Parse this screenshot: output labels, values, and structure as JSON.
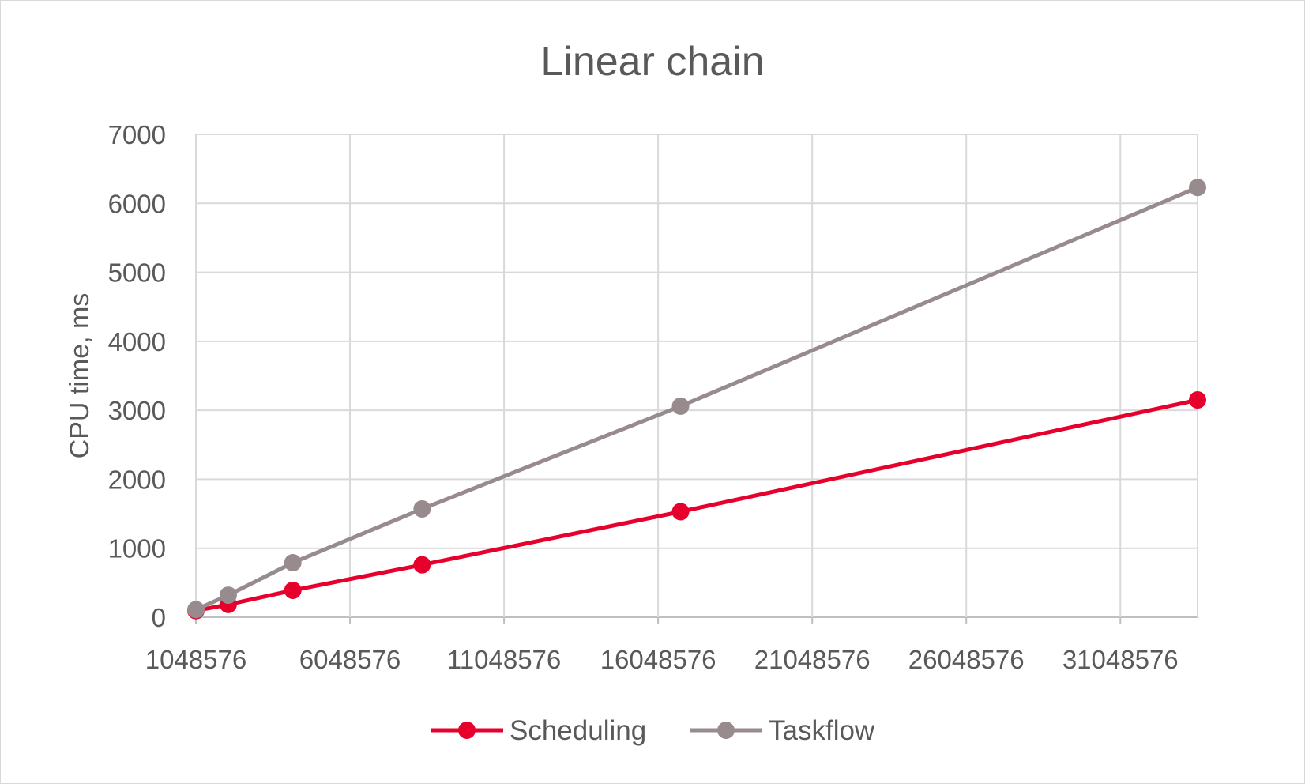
{
  "chart_data": {
    "type": "line",
    "title": "Linear chain",
    "xlabel": "",
    "ylabel": "CPU time, ms",
    "xlim": [
      1048576,
      33554432
    ],
    "ylim": [
      0,
      7000
    ],
    "x_ticks": [
      1048576,
      6048576,
      11048576,
      16048576,
      21048576,
      26048576,
      31048576
    ],
    "x_tick_labels": [
      "1048576",
      "6048576",
      "11048576",
      "16048576",
      "21048576",
      "26048576",
      "31048576"
    ],
    "y_ticks": [
      0,
      1000,
      2000,
      3000,
      4000,
      5000,
      6000,
      7000
    ],
    "y_tick_labels": [
      "0",
      "1000",
      "2000",
      "3000",
      "4000",
      "5000",
      "6000",
      "7000"
    ],
    "grid": true,
    "legend_position": "bottom",
    "series": [
      {
        "name": "Scheduling",
        "color": "#e8002d",
        "points": [
          {
            "x": 1048576,
            "y": 95
          },
          {
            "x": 2097152,
            "y": 185
          },
          {
            "x": 4194304,
            "y": 390
          },
          {
            "x": 8388608,
            "y": 760
          },
          {
            "x": 16777216,
            "y": 1530
          },
          {
            "x": 33554432,
            "y": 3150
          }
        ]
      },
      {
        "name": "Taskflow",
        "color": "#978b8d",
        "points": [
          {
            "x": 1048576,
            "y": 110
          },
          {
            "x": 2097152,
            "y": 320
          },
          {
            "x": 4194304,
            "y": 790
          },
          {
            "x": 8388608,
            "y": 1570
          },
          {
            "x": 16777216,
            "y": 3060
          },
          {
            "x": 33554432,
            "y": 6230
          }
        ]
      }
    ]
  }
}
